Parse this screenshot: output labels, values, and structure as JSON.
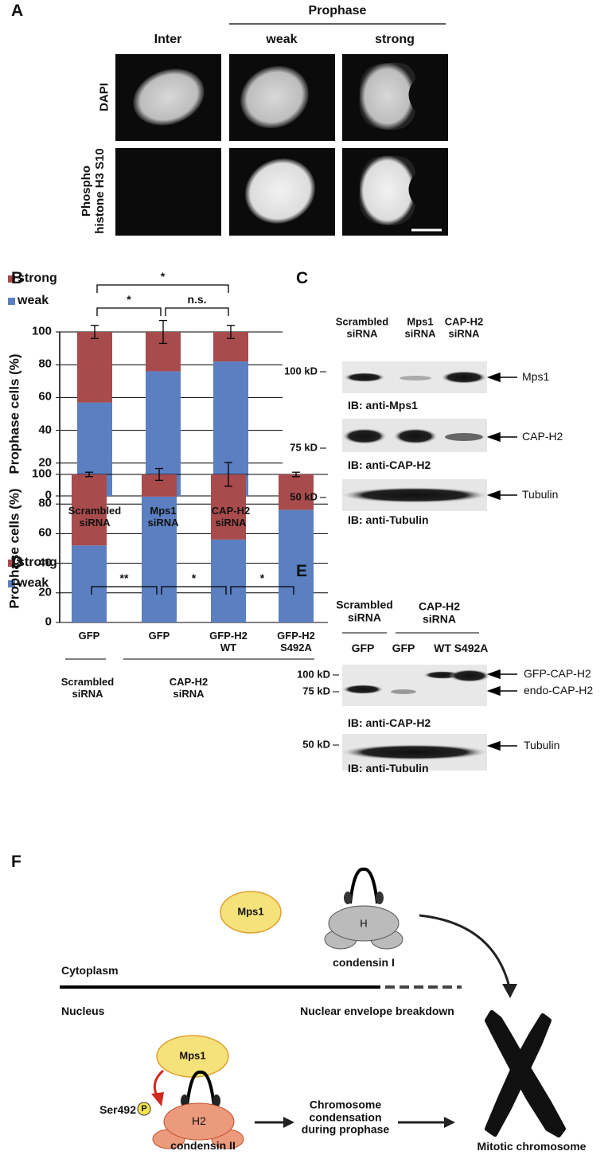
{
  "panel_labels": [
    "A",
    "B",
    "C",
    "D",
    "E",
    "F"
  ],
  "panel_a": {
    "group": "Prophase",
    "columns": [
      "Inter",
      "weak",
      "strong"
    ],
    "rows": [
      "DAPI",
      "Phospho\nhistone H3 S10"
    ]
  },
  "chart_data": [
    {
      "type": "bar",
      "stacked": true,
      "ylabel": "Prophase cells (%)",
      "categories": [
        "Scrambled\nsiRNA",
        "Mps1\nsiRNA",
        "CAP-H2\nsiRNA"
      ],
      "series": [
        {
          "name": "weak",
          "color": "#5b7fc0",
          "values": [
            57,
            76,
            82
          ]
        },
        {
          "name": "strong",
          "color": "#a84b4c",
          "values": [
            43,
            24,
            18
          ],
          "errors": [
            4,
            7,
            4
          ]
        }
      ],
      "ylim": [
        0,
        100
      ],
      "yticks": [
        0,
        20,
        40,
        60,
        80,
        100
      ],
      "grid": true,
      "legend": "top-left",
      "annotations": [
        "*",
        "n.s.",
        "*"
      ]
    },
    {
      "type": "bar",
      "stacked": true,
      "ylabel": "Prophase cells (%)",
      "categories": [
        "GFP",
        "GFP",
        "GFP-H2\nWT",
        "GFP-H2\nS492A"
      ],
      "groups": [
        "Scrambled\nsiRNA",
        "CAP-H2\nsiRNA"
      ],
      "series": [
        {
          "name": "weak",
          "color": "#5b7fc0",
          "values": [
            52,
            85,
            56,
            76
          ]
        },
        {
          "name": "strong",
          "color": "#a84b4c",
          "values": [
            48,
            15,
            44,
            24
          ],
          "errors": [
            1.5,
            4,
            8,
            1.5
          ]
        }
      ],
      "ylim": [
        0,
        100
      ],
      "yticks": [
        0,
        20,
        40,
        60,
        80,
        100
      ],
      "grid": true,
      "legend": "top-left",
      "annotations": [
        "**",
        "*",
        "*"
      ]
    }
  ],
  "panel_c": {
    "lanes": [
      "Scrambled\nsiRNA",
      "Mps1\nsiRNA",
      "CAP-H2\nsiRNA"
    ],
    "blots": [
      {
        "marker": "100 kD",
        "target": "Mps1",
        "antibody": "IB: anti-Mps1"
      },
      {
        "marker": "75 kD",
        "target": "CAP-H2",
        "antibody": "IB: anti-CAP-H2"
      },
      {
        "marker": "50 kD",
        "target": "Tubulin",
        "antibody": "IB: anti-Tubulin"
      }
    ]
  },
  "panel_e": {
    "groups": [
      "Scrambled\nsiRNA",
      "CAP-H2\nsiRNA"
    ],
    "lanes": [
      "GFP",
      "GFP",
      "WT",
      "S492A"
    ],
    "blots": [
      {
        "markers": [
          "100 kD",
          "75 kD"
        ],
        "targets": [
          "GFP-CAP-H2",
          "endo-CAP-H2"
        ],
        "antibody": "IB: anti-CAP-H2"
      },
      {
        "markers": [
          "50 kD"
        ],
        "targets": [
          "Tubulin"
        ],
        "antibody": "IB: anti-Tubulin"
      }
    ]
  },
  "panel_f": {
    "mps1_top": "Mps1",
    "condensin1_subunit": "H",
    "condensin1": "condensin I",
    "cytoplasm": "Cytoplasm",
    "nucleus": "Nucleus",
    "nebd": "Nuclear envelope breakdown",
    "mps1_bottom": "Mps1",
    "site": "Ser492",
    "phospho": "P",
    "condensin2_subunit": "H2",
    "condensin2": "condensin II",
    "process": "Chromosome\ncondensation\nduring prophase",
    "product": "Mitotic chromosome"
  }
}
